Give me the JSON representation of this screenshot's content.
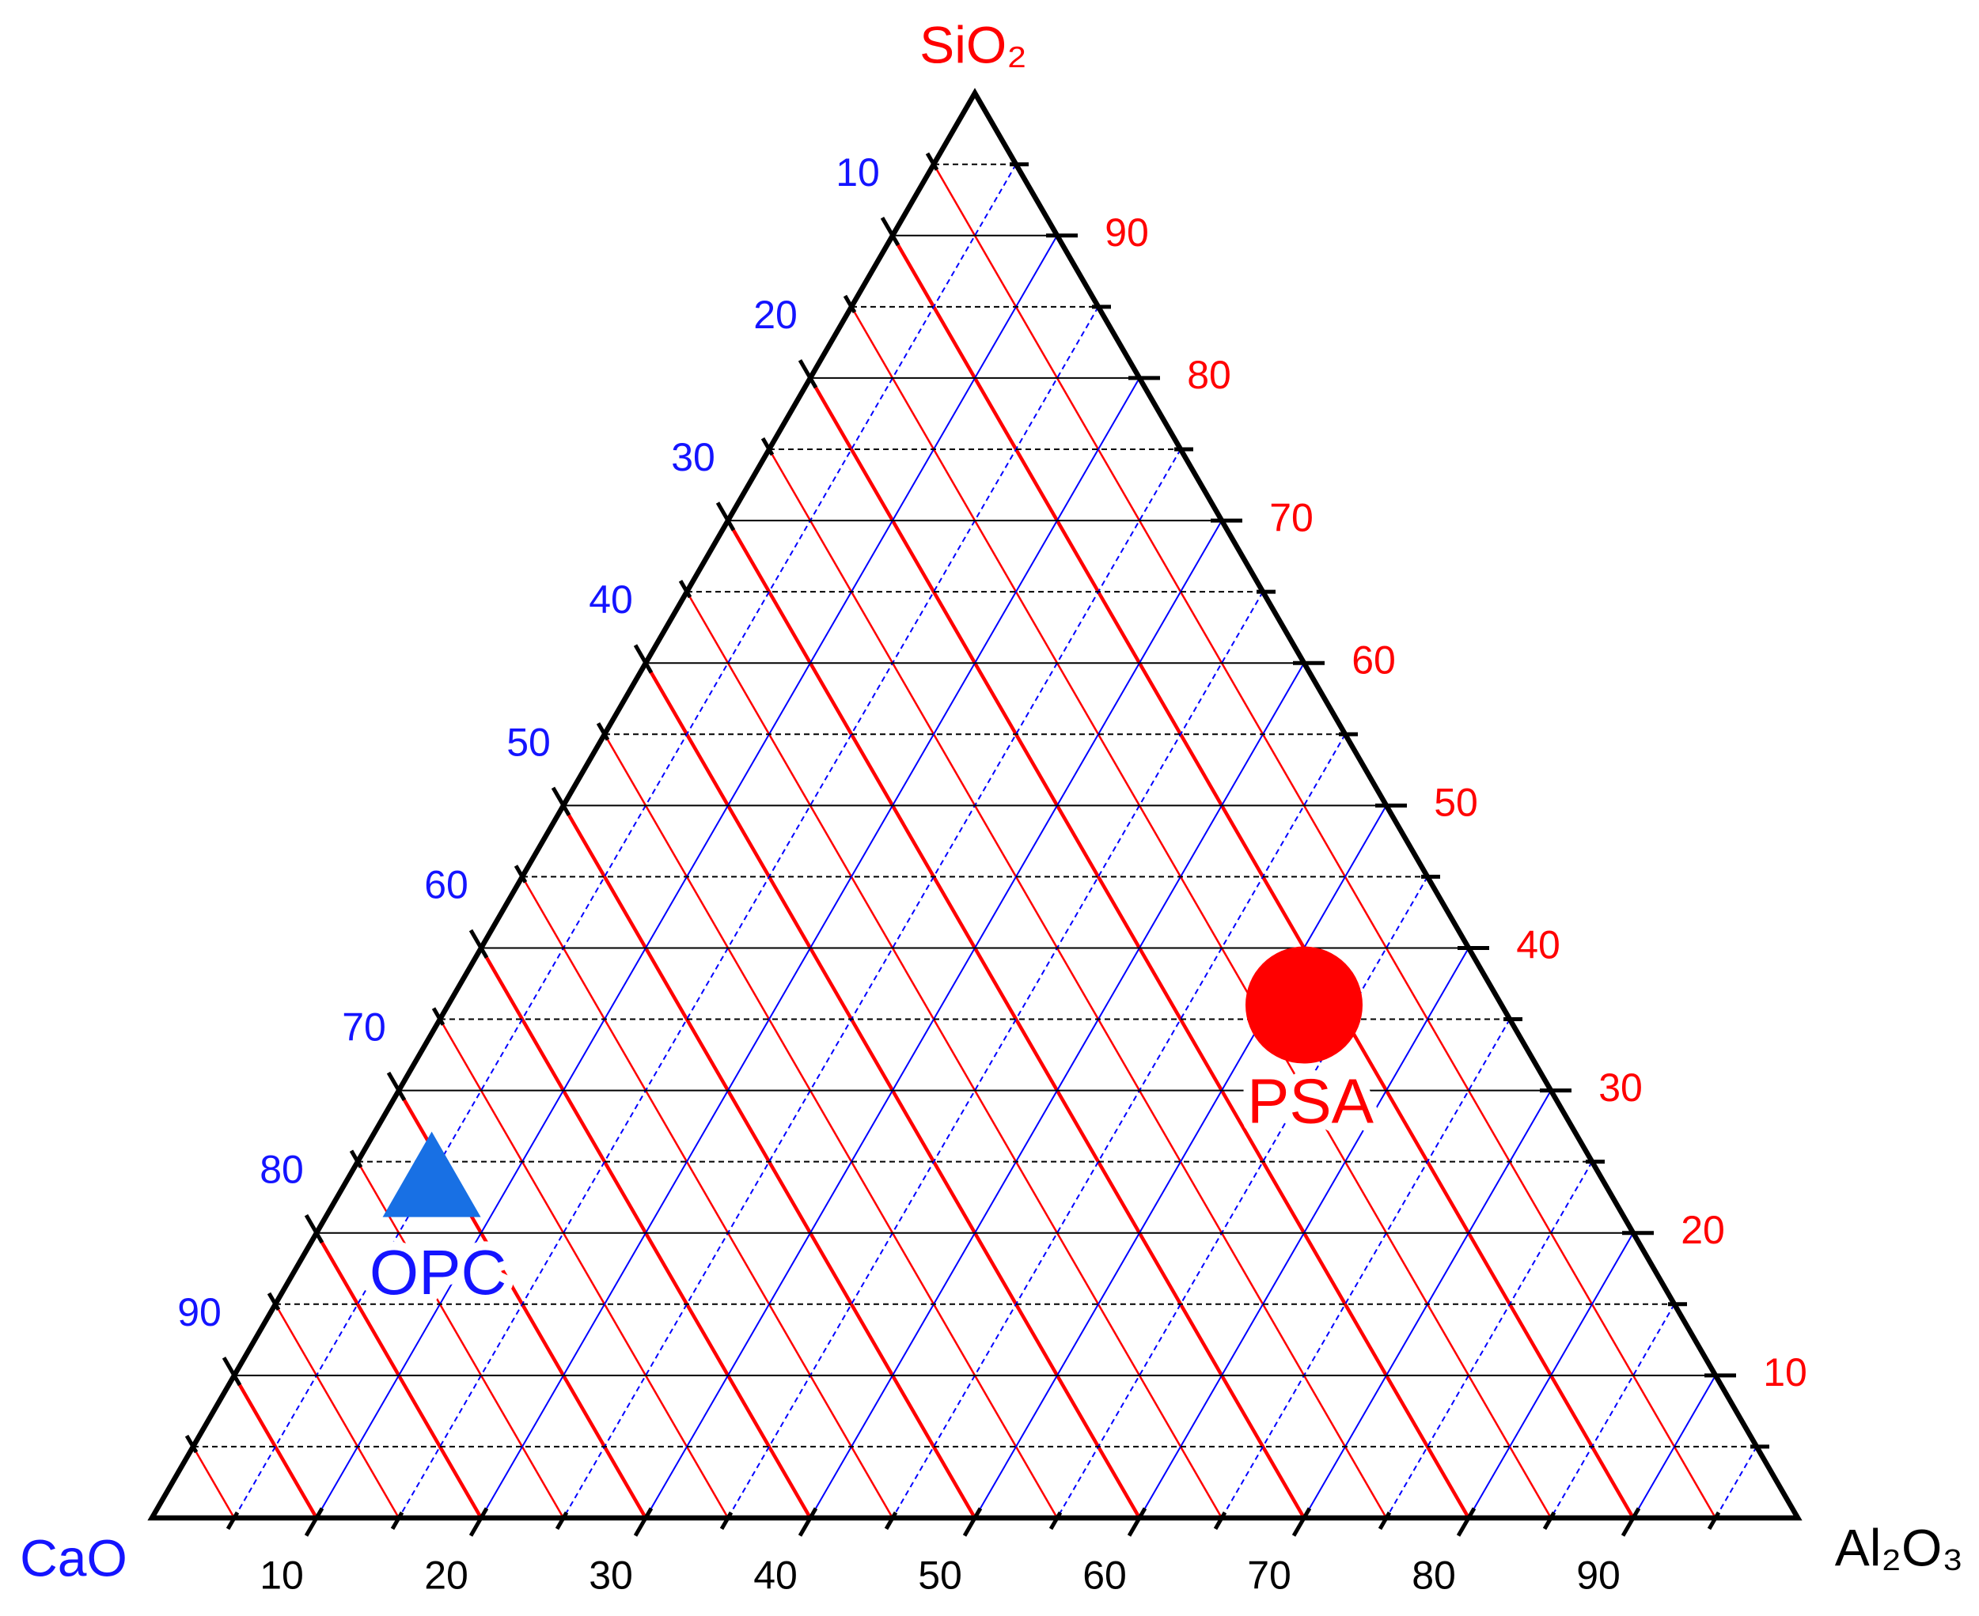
{
  "chart_data": {
    "type": "ternary",
    "axes": [
      {
        "label": "CaO",
        "corner": "left",
        "color": "#1414ff",
        "grid_color": "#ff0000",
        "lim": [
          0,
          100
        ],
        "ticks": [
          10,
          20,
          30,
          40,
          50,
          60,
          70,
          80,
          90
        ],
        "minorticks": [
          5,
          15,
          25,
          35,
          45,
          55,
          65,
          75,
          85,
          95
        ]
      },
      {
        "label": "Al₂O₃",
        "corner": "right",
        "color": "#000000",
        "grid_color": "#0000ff",
        "lim": [
          0,
          100
        ],
        "ticks": [
          10,
          20,
          30,
          40,
          50,
          60,
          70,
          80,
          90
        ],
        "minorticks": [
          5,
          15,
          25,
          35,
          45,
          55,
          65,
          75,
          85,
          95
        ]
      },
      {
        "label": "SiO₂",
        "corner": "top",
        "color": "#ff0000",
        "grid_color": "#000000",
        "lim": [
          0,
          100
        ],
        "ticks": [
          10,
          20,
          30,
          40,
          50,
          60,
          70,
          80,
          90
        ],
        "minorticks": [
          5,
          15,
          25,
          35,
          45,
          55,
          65,
          75,
          85,
          95
        ]
      }
    ],
    "grid": true,
    "series": [
      {
        "name": "OPC",
        "marker": "triangle",
        "color": "#1870e4",
        "label_color": "#1414ff",
        "values": [
          71,
          5,
          24
        ]
      },
      {
        "name": "PSA",
        "marker": "circle",
        "color": "#ff0000",
        "label_color": "#ff0000",
        "values": [
          12,
          52,
          36
        ]
      }
    ]
  }
}
